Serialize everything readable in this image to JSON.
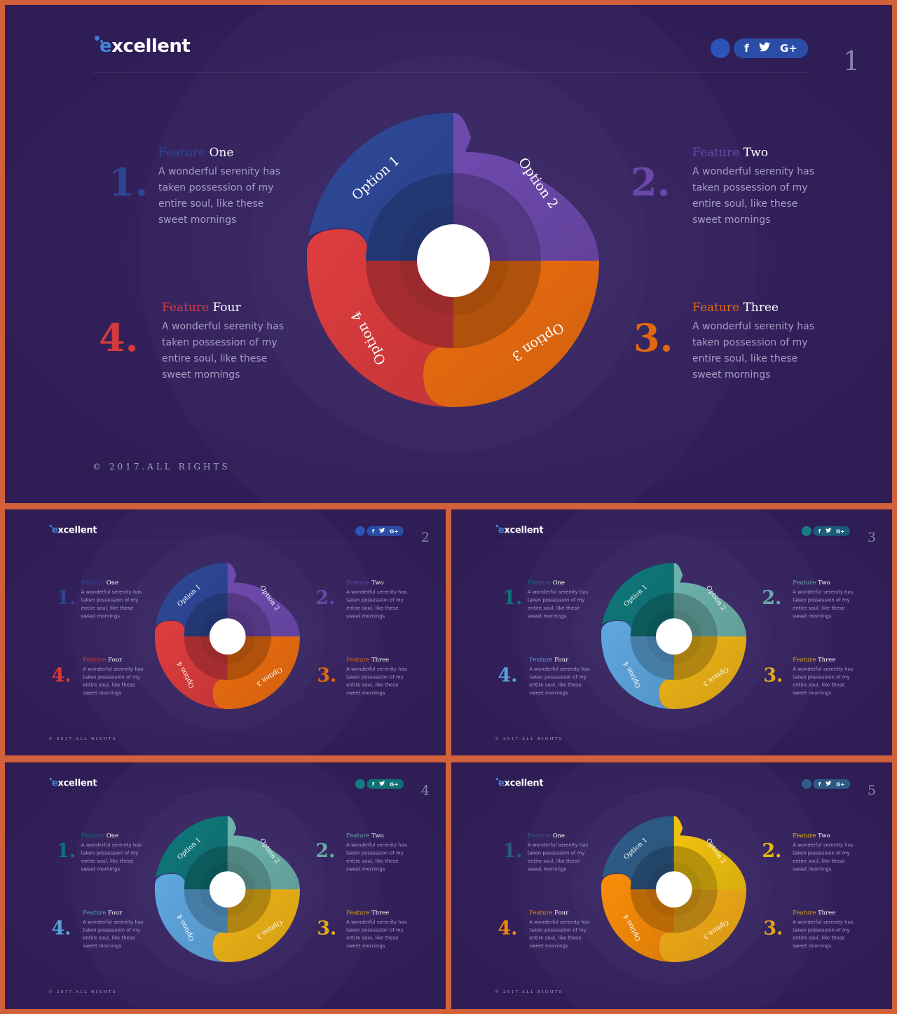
{
  "brand": {
    "logo_first": "e",
    "logo_rest": "xcellent"
  },
  "social": {
    "facebook": "f",
    "twitter": "t",
    "google": "G+"
  },
  "feature_word": "Feature",
  "options": [
    "Option 1",
    "Option 2",
    "Option 3",
    "Option 4"
  ],
  "features": [
    {
      "number": "1.",
      "name": "One",
      "desc": "A wonderful serenity has taken possession of my entire soul, like these sweet mornings"
    },
    {
      "number": "2.",
      "name": "Two",
      "desc": "A wonderful serenity has taken possession of my entire soul, like these sweet mornings"
    },
    {
      "number": "3.",
      "name": "Three",
      "desc": "A wonderful serenity has taken possession of my entire soul, like these sweet mornings"
    },
    {
      "number": "4.",
      "name": "Four",
      "desc": "A wonderful serenity has taken possession of my entire soul, like these sweet mornings"
    }
  ],
  "copyright": "© 2017.ALL RIGHTS",
  "slides": [
    {
      "page": "1",
      "colors": [
        "#2d4694",
        "#6a47a8",
        "#e2680f",
        "#d43a3c"
      ],
      "social_circle": "#2d53b8",
      "social_pill": "#2a4ea8"
    },
    {
      "page": "2",
      "colors": [
        "#2d4694",
        "#6a47a8",
        "#e2680f",
        "#d43a3c"
      ],
      "social_circle": "#2d53b8",
      "social_pill": "#2a4ea8"
    },
    {
      "page": "3",
      "colors": [
        "#0f7376",
        "#68aba5",
        "#e3ab16",
        "#5aa0d6"
      ],
      "social_circle": "#137e82",
      "social_pill": "#1a5d7a"
    },
    {
      "page": "4",
      "colors": [
        "#0f7376",
        "#68aba5",
        "#e3ab16",
        "#5aa0d6"
      ],
      "social_circle": "#137e82",
      "social_pill": "#117073"
    },
    {
      "page": "5",
      "colors": [
        "#2d5a85",
        "#e9bb0e",
        "#e6a317",
        "#ee8709"
      ],
      "social_circle": "#2d5e8c",
      "social_pill": "#2d5a85"
    }
  ]
}
